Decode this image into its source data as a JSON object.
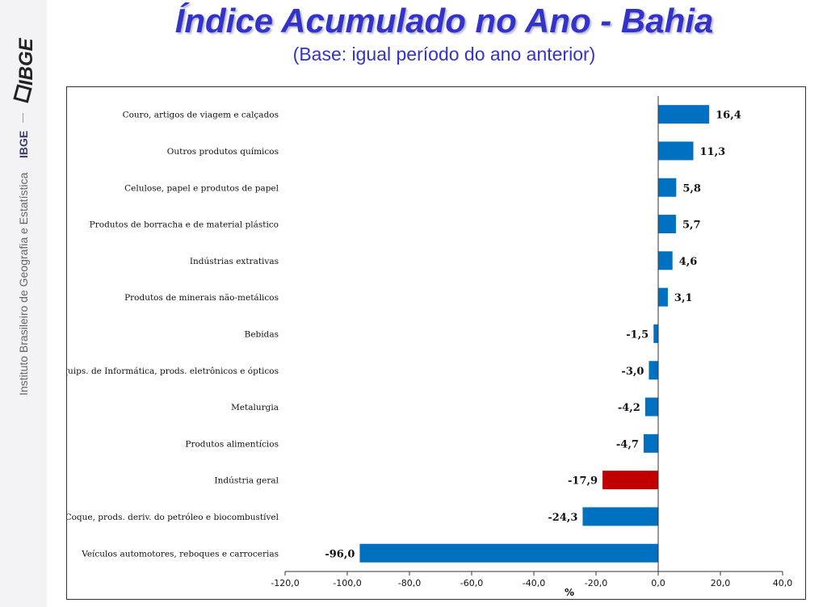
{
  "sidebar": {
    "logo_text": "IBGE",
    "ibge_label": "IBGE",
    "institute_name": "Instituto Brasileiro de Geografia e Estatística"
  },
  "header": {
    "title": "Índice Acumulado no Ano - Bahia",
    "subtitle": "(Base: igual período do ano anterior)"
  },
  "colors": {
    "bar": "#0070c0",
    "highlight_bar": "#c00000",
    "title": "#3333cc"
  },
  "chart_data": {
    "type": "bar",
    "orientation": "horizontal",
    "categories": [
      "Couro, artigos de viagem e calçados",
      "Outros produtos químicos",
      "Celulose, papel e produtos de papel",
      "Produtos de borracha e de material plástico",
      "Indústrias extrativas",
      "Produtos de minerais não-metálicos",
      "Bebidas",
      "Equips. de Informática, prods. eletrônicos e ópticos",
      "Metalurgia",
      "Produtos alimentícios",
      "Indústria geral",
      "Coque, prods. deriv. do petróleo e biocombustível",
      "Veículos automotores, reboques e carrocerias"
    ],
    "values": [
      16.4,
      11.3,
      5.8,
      5.7,
      4.6,
      3.1,
      -1.5,
      -3.0,
      -4.2,
      -4.7,
      -17.9,
      -24.3,
      -96.0
    ],
    "value_labels": [
      "16,4",
      "11,3",
      "5,8",
      "5,7",
      "4,6",
      "3,1",
      "-1,5",
      "-3,0",
      "-4,2",
      "-4,7",
      "-17,9",
      "-24,3",
      "-96,0"
    ],
    "highlight_category": "Indústria geral",
    "xlim": [
      -120,
      40
    ],
    "xticks": [
      "-120,0",
      "-100,0",
      "-80,0",
      "-60,0",
      "-40,0",
      "-20,0",
      "0,0",
      "20,0",
      "40,0"
    ],
    "xlabel": "%",
    "ylabel": "",
    "grid": false,
    "legend": "none"
  }
}
